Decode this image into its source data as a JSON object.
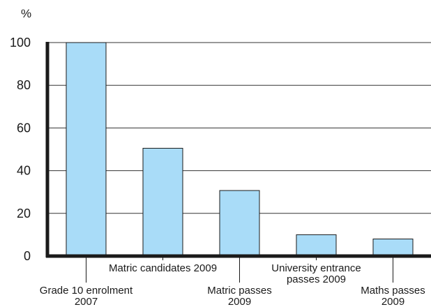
{
  "chart_data": {
    "type": "bar",
    "unit_label": "%",
    "categories": [
      [
        "Grade 10 enrolment",
        "2007"
      ],
      [
        "Matric candidates 2009"
      ],
      [
        "Matric passes",
        "2009"
      ],
      [
        "University entrance",
        "passes 2009"
      ],
      [
        "Maths passes",
        "2009"
      ]
    ],
    "values": [
      100,
      50.5,
      30.7,
      10,
      8
    ],
    "ylim": [
      0,
      100
    ],
    "yticks": [
      0,
      20,
      40,
      60,
      80,
      100
    ],
    "grid": true,
    "colors": {
      "bar_fill": "#a9dcf8",
      "bar_stroke": "#1a1a1a",
      "axis": "#1a1a1a",
      "grid": "#333333"
    }
  }
}
